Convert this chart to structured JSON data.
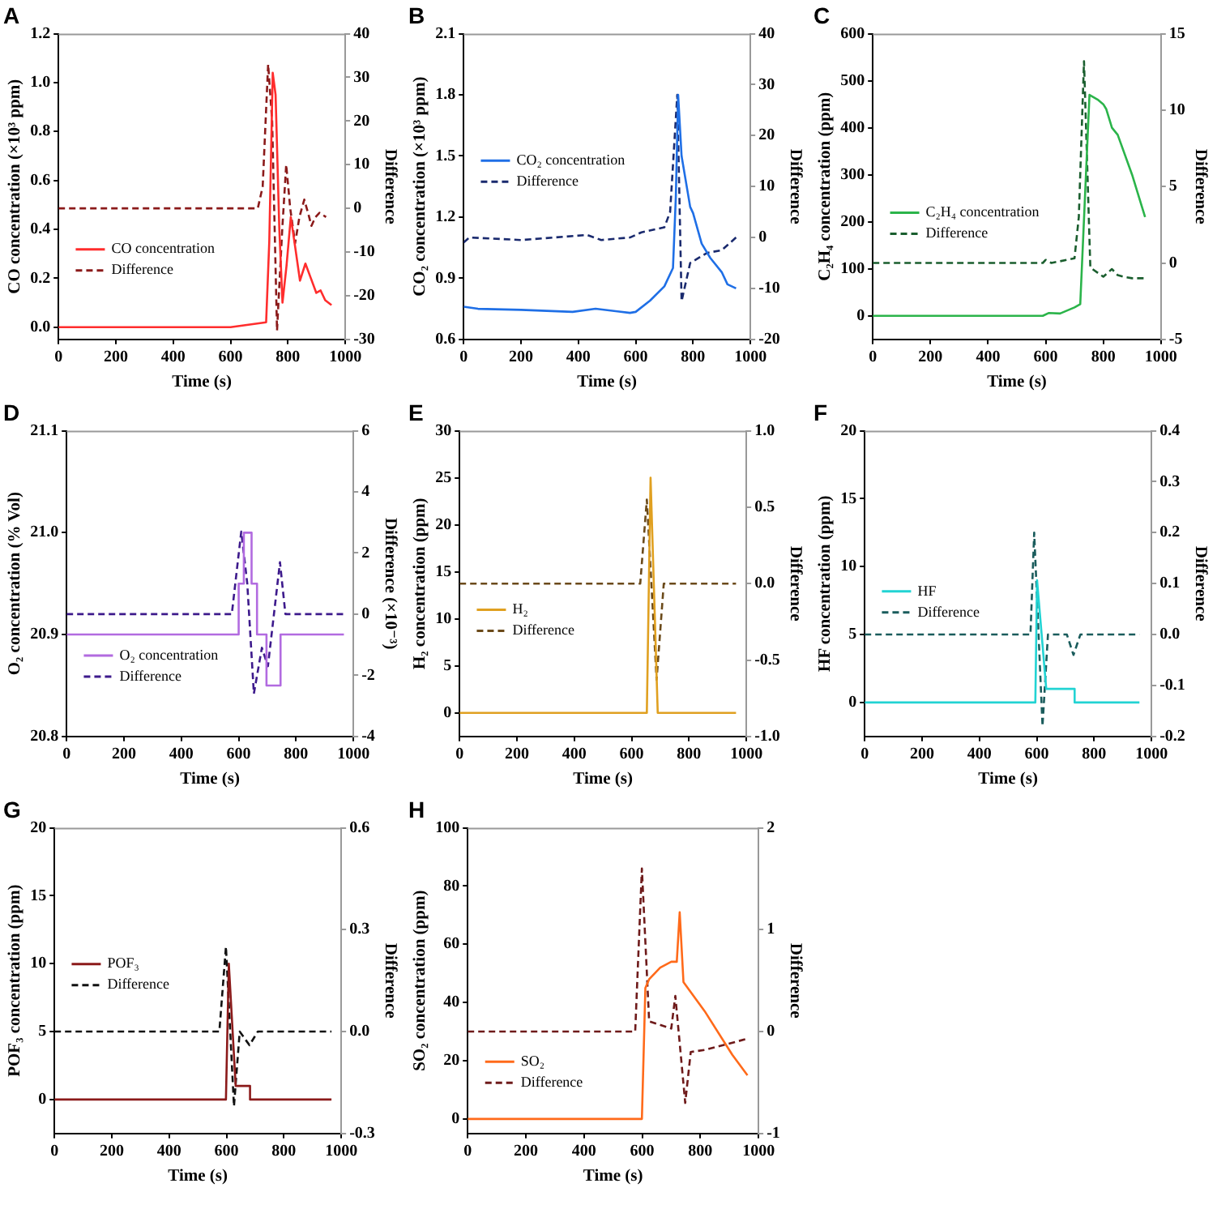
{
  "chart_data": [
    {
      "type": "line",
      "title": "A",
      "xlabel": "Time (s)",
      "ylabel": "CO concentration (×10³ ppm)",
      "y2label": "Difference",
      "xlim": [
        0,
        1000
      ],
      "xticks": [
        0,
        200,
        400,
        600,
        800,
        1000
      ],
      "ylim": [
        -0.05,
        1.2
      ],
      "yticks": [
        {
          "value": 0,
          "label": "0.0"
        },
        0.2,
        0.4,
        0.6,
        0.8,
        {
          "value": 1,
          "label": "1.0"
        },
        1.2
      ],
      "y2lim": [
        -30,
        40
      ],
      "y2ticks": [
        -30,
        -20,
        -10,
        0,
        10,
        20,
        30,
        40
      ],
      "legend": "left",
      "grid": false,
      "series": [
        {
          "name": "CO concentration",
          "color": "#ff2d2d",
          "line_style": "solid",
          "axis": "y",
          "x": [
            0,
            600,
            724,
            735,
            747,
            757,
            770,
            781,
            795,
            810,
            825,
            842,
            861,
            880,
            899,
            914,
            930,
            952
          ],
          "values": [
            0,
            0,
            0.02,
            0.35,
            1.04,
            0.95,
            0.4,
            0.1,
            0.25,
            0.45,
            0.33,
            0.19,
            0.26,
            0.2,
            0.14,
            0.15,
            0.11,
            0.09
          ]
        },
        {
          "name": "Difference",
          "color": "#8b1a1a",
          "line_style": "dashed",
          "axis": "y2",
          "x": [
            0,
            695,
            712,
            731,
            745,
            762,
            780,
            794,
            808,
            825,
            840,
            857,
            870,
            882,
            896,
            910,
            933
          ],
          "values": [
            0,
            0,
            5,
            33,
            20,
            -28,
            -5,
            10,
            0,
            -8,
            -2,
            2,
            -1,
            -4,
            -2,
            -1,
            -2
          ]
        }
      ]
    },
    {
      "type": "line",
      "title": "B",
      "xlabel": "Time (s)",
      "ylabel": "CO₂ concentration (×10³ ppm)",
      "y2label": "Difference",
      "xlim": [
        0,
        1000
      ],
      "xticks": [
        0,
        200,
        400,
        600,
        800,
        1000
      ],
      "ylim": [
        0.6,
        2.1
      ],
      "yticks": [
        0.6,
        0.9,
        1.2,
        1.5,
        1.8,
        2.1
      ],
      "y2lim": [
        -20,
        40
      ],
      "y2ticks": [
        -20,
        -10,
        0,
        10,
        20,
        30,
        40
      ],
      "legend": "left",
      "grid": false,
      "series": [
        {
          "name": "CO₂ concentration",
          "color": "#1f6fe6",
          "line_style": "solid",
          "axis": "y",
          "x": [
            0,
            50,
            200,
            380,
            460,
            580,
            600,
            650,
            700,
            730,
            740,
            748,
            760,
            790,
            800,
            830,
            860,
            900,
            920,
            950
          ],
          "values": [
            0.76,
            0.75,
            0.745,
            0.735,
            0.75,
            0.73,
            0.735,
            0.79,
            0.86,
            0.95,
            1.3,
            1.8,
            1.5,
            1.25,
            1.22,
            1.07,
            1.0,
            0.93,
            0.87,
            0.85
          ]
        },
        {
          "name": "Difference",
          "color": "#1a2a6e",
          "line_style": "dashed",
          "axis": "y2",
          "x": [
            0,
            20,
            200,
            430,
            480,
            580,
            620,
            700,
            720,
            745,
            760,
            790,
            820,
            850,
            900,
            950
          ],
          "values": [
            -1,
            0,
            -0.5,
            0.5,
            -0.5,
            0,
            1,
            2,
            5,
            28,
            -12.5,
            -5,
            -4,
            -3,
            -2.5,
            0
          ]
        }
      ]
    },
    {
      "type": "line",
      "title": "C",
      "xlabel": "Time (s)",
      "ylabel": "C₂H₄ concentration (ppm)",
      "y2label": "Difference",
      "xlim": [
        0,
        1000
      ],
      "xticks": [
        0,
        200,
        400,
        600,
        800,
        1000
      ],
      "ylim": [
        -50,
        600
      ],
      "yticks": [
        0,
        100,
        200,
        300,
        400,
        500,
        600
      ],
      "y2lim": [
        -5,
        15
      ],
      "y2ticks": [
        -5,
        0,
        5,
        10,
        15
      ],
      "legend": "left",
      "grid": false,
      "series": [
        {
          "name": "C₂H₄ concentration",
          "color": "#2bb44a",
          "line_style": "solid",
          "axis": "y",
          "x": [
            0,
            590,
            610,
            650,
            700,
            720,
            752,
            780,
            800,
            810,
            830,
            850,
            900,
            945
          ],
          "values": [
            0,
            0,
            6,
            5,
            18,
            25,
            470,
            460,
            450,
            440,
            400,
            385,
            300,
            210
          ]
        },
        {
          "name": "Difference",
          "color": "#1a5e2e",
          "line_style": "dashed",
          "axis": "y2",
          "x": [
            0,
            590,
            600,
            620,
            700,
            715,
            733,
            755,
            800,
            830,
            850,
            870,
            900,
            940
          ],
          "values": [
            0,
            0,
            0.2,
            0,
            0.3,
            3,
            13.2,
            -0.3,
            -0.9,
            -0.4,
            -0.8,
            -0.9,
            -1,
            -1
          ]
        }
      ]
    },
    {
      "type": "line",
      "title": "D",
      "xlabel": "Time (s)",
      "ylabel": "O₂ concentration (% Vol)",
      "y2label": "Difference (×10⁻³)",
      "xlim": [
        0,
        1000
      ],
      "xticks": [
        0,
        200,
        400,
        600,
        800,
        1000
      ],
      "ylim": [
        20.8,
        21.1
      ],
      "yticks": [
        20.8,
        20.9,
        {
          "value": 21,
          "label": "21.0"
        },
        21.1
      ],
      "y2lim": [
        -4,
        6
      ],
      "y2ticks": [
        -4,
        -2,
        0,
        2,
        4,
        6
      ],
      "legend": "left",
      "grid": false,
      "series": [
        {
          "name": "O₂ concentration",
          "color": "#b26be0",
          "line_style": "solid",
          "axis": "y",
          "x": [
            0,
            600,
            600,
            618,
            618,
            645,
            645,
            664,
            664,
            697,
            697,
            746,
            746,
            967
          ],
          "values": [
            20.9,
            20.9,
            20.95,
            20.95,
            21.0,
            21.0,
            20.95,
            20.95,
            20.9,
            20.9,
            20.85,
            20.85,
            20.9,
            20.9
          ]
        },
        {
          "name": "Difference",
          "color": "#3d1a8c",
          "line_style": "dashed",
          "axis": "y2",
          "x": [
            0,
            576,
            609,
            630,
            653,
            681,
            702,
            744,
            763,
            967
          ],
          "values": [
            0,
            0,
            2.7,
            1,
            -2.6,
            -1.1,
            -1.7,
            1.7,
            0,
            0
          ]
        }
      ]
    },
    {
      "type": "line",
      "title": "E",
      "xlabel": "Time (s)",
      "ylabel": "H₂ concentration (ppm)",
      "y2label": "Difference",
      "xlim": [
        0,
        1000
      ],
      "xticks": [
        0,
        200,
        400,
        600,
        800,
        1000
      ],
      "ylim": [
        -2.5,
        30
      ],
      "yticks": [
        0,
        5,
        10,
        15,
        20,
        25,
        30
      ],
      "y2lim": [
        -1,
        1
      ],
      "y2ticks": [
        {
          "value": -1,
          "label": "-1.0"
        },
        -0.5,
        {
          "value": 0,
          "label": "0.0"
        },
        0.5,
        {
          "value": 1,
          "label": "1.0"
        }
      ],
      "legend": "left",
      "grid": false,
      "series": [
        {
          "name": "H₂",
          "color": "#e0a020",
          "line_style": "solid",
          "axis": "y",
          "x": [
            0,
            653,
            666,
            691,
            964
          ],
          "values": [
            0,
            0,
            25,
            0,
            0
          ]
        },
        {
          "name": "Difference",
          "color": "#6b4a1a",
          "line_style": "dashed",
          "axis": "y2",
          "x": [
            0,
            630,
            653,
            687,
            712,
            964
          ],
          "values": [
            0,
            0,
            0.55,
            -0.63,
            0,
            0
          ]
        }
      ]
    },
    {
      "type": "line",
      "title": "F",
      "xlabel": "Time (s)",
      "ylabel": "HF concentration (ppm)",
      "y2label": "Difference",
      "xlim": [
        0,
        1000
      ],
      "xticks": [
        0,
        200,
        400,
        600,
        800,
        1000
      ],
      "ylim": [
        -2.5,
        20
      ],
      "yticks": [
        0,
        5,
        10,
        15,
        20
      ],
      "y2lim": [
        -0.2,
        0.4
      ],
      "y2ticks": [
        -0.2,
        -0.1,
        {
          "value": 0,
          "label": "0.0"
        },
        0.1,
        0.2,
        0.3,
        0.4
      ],
      "legend": "left",
      "grid": false,
      "series": [
        {
          "name": "HF",
          "color": "#22d3d3",
          "line_style": "solid",
          "axis": "y",
          "x": [
            0,
            595,
            601,
            633,
            732,
            732,
            958
          ],
          "values": [
            0,
            0,
            9,
            1,
            1,
            0,
            0
          ]
        },
        {
          "name": "Difference",
          "color": "#1a5c5c",
          "line_style": "dashed",
          "axis": "y2",
          "x": [
            0,
            578,
            591,
            620,
            639,
            705,
            728,
            752,
            958
          ],
          "values": [
            0,
            0,
            0.2,
            -0.18,
            0,
            0,
            -0.04,
            0,
            0
          ]
        }
      ]
    },
    {
      "type": "line",
      "title": "G",
      "xlabel": "Time (s)",
      "ylabel": "POF₃ concentration (ppm)",
      "y2label": "Difference",
      "xlim": [
        0,
        1000
      ],
      "xticks": [
        0,
        200,
        400,
        600,
        800,
        1000
      ],
      "ylim": [
        -2.5,
        20
      ],
      "yticks": [
        0,
        5,
        10,
        15,
        20
      ],
      "y2lim": [
        -0.3,
        0.6
      ],
      "y2ticks": [
        -0.3,
        {
          "value": 0,
          "label": "0.0"
        },
        0.3,
        0.6
      ],
      "legend": "left",
      "grid": false,
      "series": [
        {
          "name": "POF₃",
          "color": "#8b1a1a",
          "line_style": "solid",
          "axis": "y",
          "x": [
            0,
            598,
            608,
            632,
            682,
            682,
            966
          ],
          "values": [
            0,
            0,
            10,
            1,
            1,
            0,
            0
          ]
        },
        {
          "name": "Difference",
          "color": "#111111",
          "line_style": "dashed",
          "axis": "y2",
          "x": [
            0,
            575,
            598,
            626,
            646,
            680,
            709,
            966
          ],
          "values": [
            0,
            0,
            0.25,
            -0.22,
            0,
            -0.04,
            0,
            0
          ]
        }
      ]
    },
    {
      "type": "line",
      "title": "H",
      "xlabel": "Time (s)",
      "ylabel": "SO₂ concentration (ppm)",
      "y2label": "Difference",
      "xlim": [
        0,
        1000
      ],
      "xticks": [
        0,
        200,
        400,
        600,
        800,
        1000
      ],
      "ylim": [
        -5,
        100
      ],
      "yticks": [
        0,
        20,
        40,
        60,
        80,
        100
      ],
      "y2lim": [
        -1,
        2
      ],
      "y2ticks": [
        -1,
        0,
        1,
        2
      ],
      "legend": "left",
      "grid": false,
      "series": [
        {
          "name": "SO₂",
          "color": "#ff6a1a",
          "line_style": "solid",
          "axis": "y",
          "x": [
            0,
            599,
            611,
            624,
            662,
            700,
            719,
            729,
            742,
            815,
            910,
            962
          ],
          "values": [
            0,
            0,
            45,
            48,
            52,
            54,
            54,
            71,
            47,
            37,
            22,
            15
          ]
        },
        {
          "name": "Difference",
          "color": "#6e1a1a",
          "line_style": "dashed",
          "axis": "y2",
          "x": [
            0,
            576,
            599,
            624,
            700,
            714,
            748,
            767,
            815,
            962
          ],
          "values": [
            0,
            0,
            1.6,
            0.1,
            0.03,
            0.35,
            -0.7,
            -0.2,
            -0.18,
            -0.07
          ]
        }
      ]
    }
  ]
}
